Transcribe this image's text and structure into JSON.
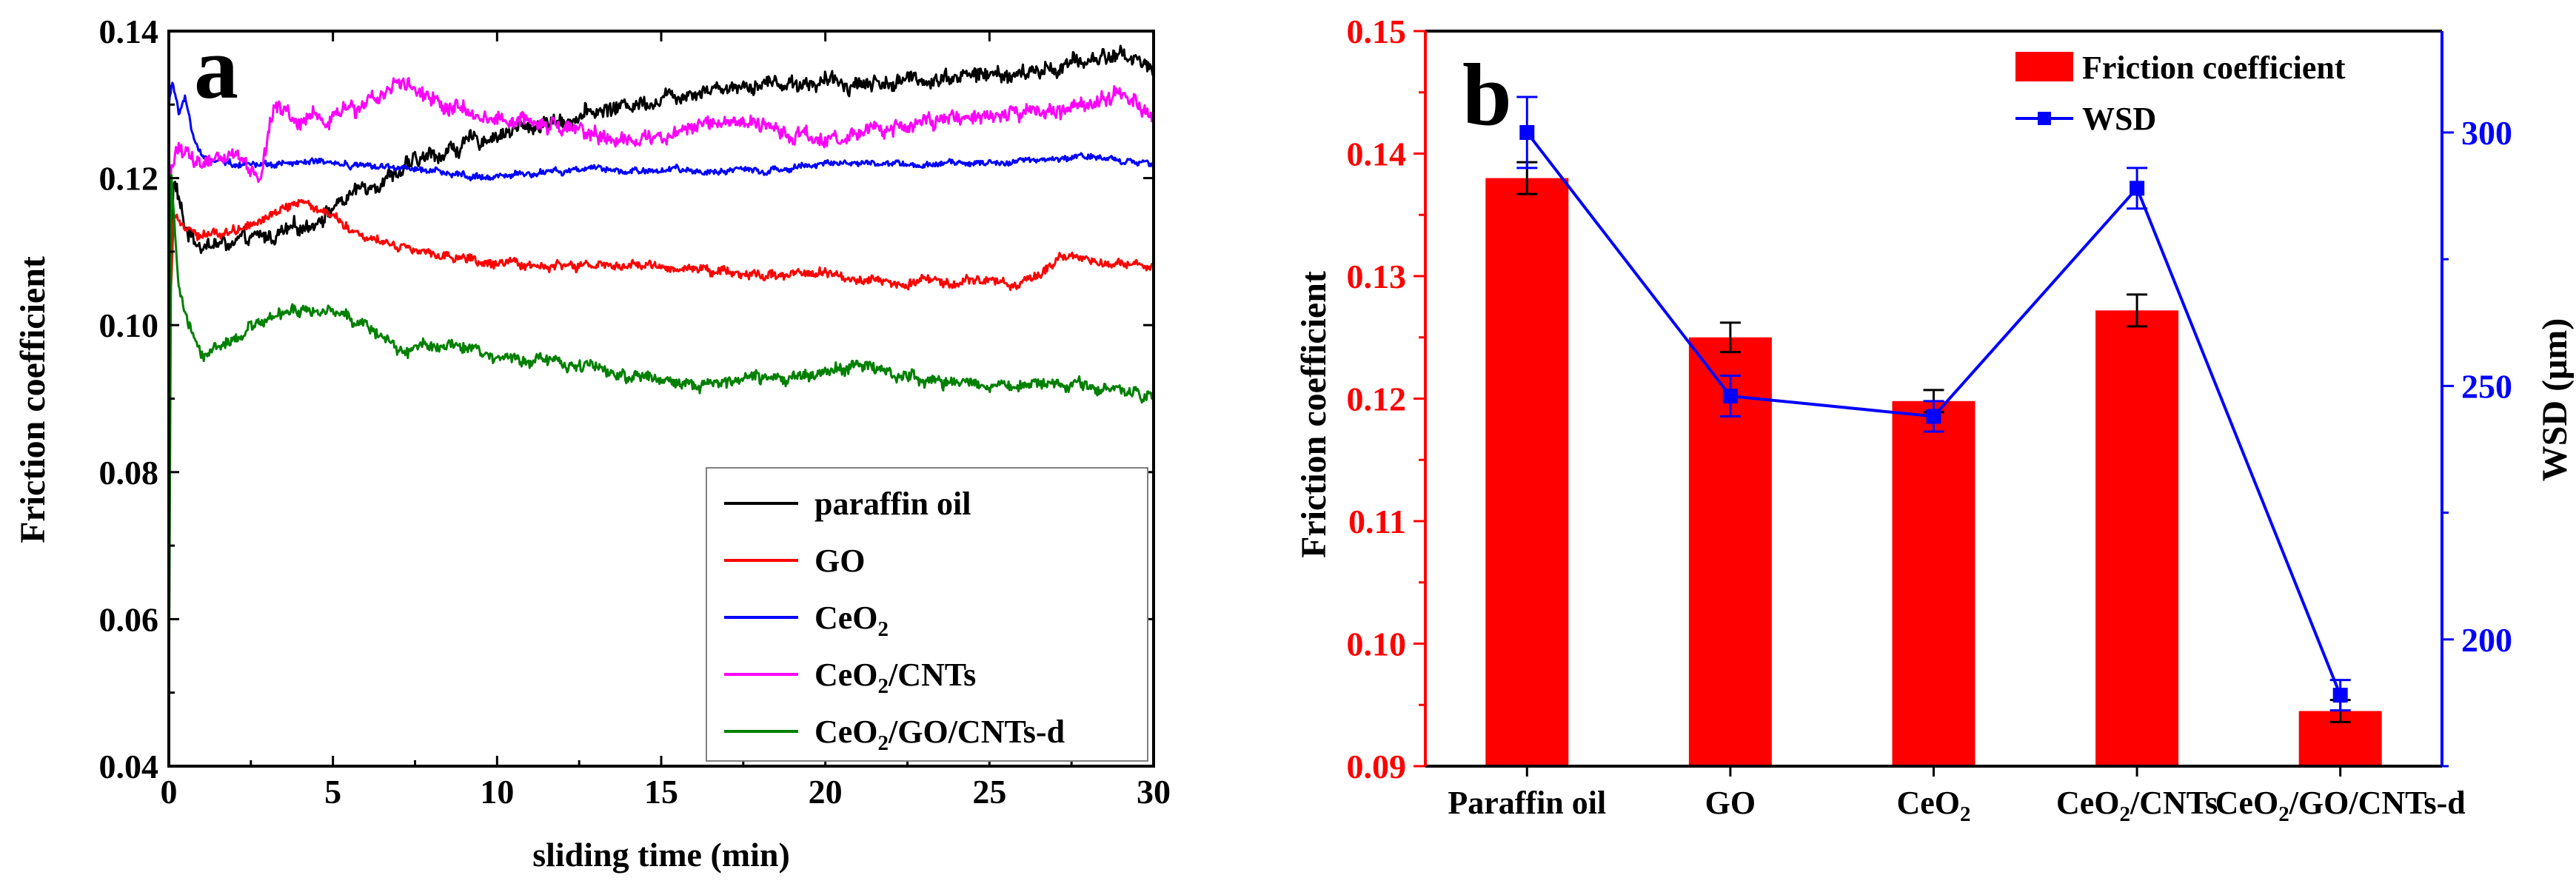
{
  "chart_data": [
    {
      "panel_label": "a",
      "type": "line",
      "xlabel": "sliding time (min)",
      "ylabel": "Friction coefficient",
      "xlim": [
        0,
        30
      ],
      "ylim": [
        0.04,
        0.14
      ],
      "x_ticks": [
        0,
        5,
        10,
        15,
        20,
        25,
        30
      ],
      "x_tick_labels": [
        "0",
        "5",
        "10",
        "15",
        "20",
        "25",
        "30"
      ],
      "y_ticks": [
        0.04,
        0.06,
        0.08,
        0.1,
        0.12,
        0.14
      ],
      "y_tick_labels": [
        "0.04",
        "0.06",
        "0.08",
        "0.10",
        "0.12",
        "0.14"
      ],
      "legend": {
        "position": "bottom-right"
      },
      "series": [
        {
          "name": "paraffin oil",
          "name_main": "paraffin oil",
          "name_sub": "",
          "name_rest": "",
          "color": "#000000",
          "noise": 0.0015,
          "keypoints": [
            [
              0,
              0.095
            ],
            [
              0.15,
              0.12
            ],
            [
              0.5,
              0.113
            ],
            [
              1,
              0.111
            ],
            [
              2,
              0.111
            ],
            [
              3,
              0.112
            ],
            [
              4,
              0.113
            ],
            [
              5,
              0.116
            ],
            [
              6,
              0.119
            ],
            [
              7,
              0.121
            ],
            [
              8,
              0.123
            ],
            [
              10,
              0.126
            ],
            [
              12,
              0.128
            ],
            [
              14,
              0.13
            ],
            [
              16,
              0.132
            ],
            [
              18,
              0.133
            ],
            [
              20,
              0.133
            ],
            [
              22,
              0.133
            ],
            [
              24,
              0.134
            ],
            [
              26,
              0.134
            ],
            [
              28,
              0.136
            ],
            [
              29,
              0.137
            ],
            [
              30,
              0.135
            ]
          ]
        },
        {
          "name": "GO",
          "name_main": "GO",
          "name_sub": "",
          "name_rest": "",
          "color": "#ff0000",
          "noise": 0.0009,
          "keypoints": [
            [
              0,
              0.098
            ],
            [
              0.15,
              0.115
            ],
            [
              0.5,
              0.114
            ],
            [
              1,
              0.112
            ],
            [
              2,
              0.113
            ],
            [
              3,
              0.115
            ],
            [
              4,
              0.117
            ],
            [
              5,
              0.115
            ],
            [
              6,
              0.112
            ],
            [
              7,
              0.111
            ],
            [
              8,
              0.11
            ],
            [
              10,
              0.108
            ],
            [
              12,
              0.108
            ],
            [
              15,
              0.108
            ],
            [
              18,
              0.107
            ],
            [
              20,
              0.107
            ],
            [
              22,
              0.106
            ],
            [
              24,
              0.106
            ],
            [
              25.5,
              0.106
            ],
            [
              26,
              0.105
            ],
            [
              27,
              0.109
            ],
            [
              28,
              0.109
            ],
            [
              30,
              0.108
            ]
          ]
        },
        {
          "name": "CeO2",
          "name_main": "CeO",
          "name_sub": "2",
          "name_rest": "",
          "color": "#0000ff",
          "noise": 0.0006,
          "keypoints": [
            [
              0,
              0.13
            ],
            [
              0.1,
              0.133
            ],
            [
              0.3,
              0.129
            ],
            [
              0.5,
              0.131
            ],
            [
              0.7,
              0.126
            ],
            [
              1,
              0.123
            ],
            [
              2,
              0.122
            ],
            [
              3,
              0.122
            ],
            [
              5,
              0.122
            ],
            [
              8,
              0.121
            ],
            [
              10,
              0.12
            ],
            [
              12,
              0.121
            ],
            [
              15,
              0.121
            ],
            [
              18,
              0.121
            ],
            [
              20,
              0.122
            ],
            [
              22,
              0.122
            ],
            [
              25,
              0.122
            ],
            [
              28,
              0.123
            ],
            [
              30,
              0.122
            ]
          ]
        },
        {
          "name": "CeO2/CNTs",
          "name_main": "CeO",
          "name_sub": "2",
          "name_rest": "/CNTs",
          "color": "#ff00ff",
          "noise": 0.0015,
          "keypoints": [
            [
              0,
              0.044
            ],
            [
              0.05,
              0.12
            ],
            [
              0.2,
              0.124
            ],
            [
              1,
              0.122
            ],
            [
              2,
              0.123
            ],
            [
              2.8,
              0.12
            ],
            [
              3.2,
              0.13
            ],
            [
              4,
              0.128
            ],
            [
              6,
              0.13
            ],
            [
              7,
              0.133
            ],
            [
              8,
              0.13
            ],
            [
              10,
              0.128
            ],
            [
              12,
              0.127
            ],
            [
              14,
              0.125
            ],
            [
              16,
              0.127
            ],
            [
              18,
              0.127
            ],
            [
              20,
              0.125
            ],
            [
              22,
              0.127
            ],
            [
              24,
              0.128
            ],
            [
              26,
              0.129
            ],
            [
              28,
              0.13
            ],
            [
              29,
              0.132
            ],
            [
              30,
              0.128
            ]
          ]
        },
        {
          "name": "CeO2/GO/CNTs-d",
          "name_main": "CeO",
          "name_sub": "2",
          "name_rest": "/GO/CNTs-d",
          "color": "#008000",
          "noise": 0.0012,
          "keypoints": [
            [
              0,
              0.046
            ],
            [
              0.08,
              0.12
            ],
            [
              0.3,
              0.105
            ],
            [
              0.6,
              0.1
            ],
            [
              1,
              0.096
            ],
            [
              2,
              0.098
            ],
            [
              3,
              0.101
            ],
            [
              4,
              0.102
            ],
            [
              5,
              0.101
            ],
            [
              6,
              0.1
            ],
            [
              7,
              0.097
            ],
            [
              9,
              0.097
            ],
            [
              10,
              0.096
            ],
            [
              12,
              0.095
            ],
            [
              14,
              0.093
            ],
            [
              16,
              0.092
            ],
            [
              18,
              0.093
            ],
            [
              20,
              0.093
            ],
            [
              21,
              0.095
            ],
            [
              22,
              0.093
            ],
            [
              24,
              0.092
            ],
            [
              26,
              0.092
            ],
            [
              28,
              0.092
            ],
            [
              30,
              0.09
            ]
          ]
        }
      ]
    },
    {
      "panel_label": "b",
      "type": "bar",
      "categories": [
        "Paraffin oil",
        "GO",
        "CeO2",
        "CeO2/CNTs",
        "CeO2/GO/CNTs-d"
      ],
      "category_labels": [
        {
          "main": "Paraffin oil",
          "sub": "",
          "rest": ""
        },
        {
          "main": "GO",
          "sub": "",
          "rest": ""
        },
        {
          "main": "CeO",
          "sub": "2",
          "rest": ""
        },
        {
          "main": "CeO",
          "sub": "2",
          "rest": "/CNTs"
        },
        {
          "main": "CeO",
          "sub": "2",
          "rest": "/GO/CNTs-d"
        }
      ],
      "ylabel": "Friction coefficient",
      "ylim": [
        0.09,
        0.15
      ],
      "y_ticks": [
        0.09,
        0.1,
        0.11,
        0.12,
        0.13,
        0.14,
        0.15
      ],
      "y_tick_labels": [
        "0.09",
        "0.10",
        "0.11",
        "0.12",
        "0.13",
        "0.14",
        "0.15"
      ],
      "y2label": "WSD (μm)",
      "y2lim": [
        175,
        320
      ],
      "y2_ticks": [
        200,
        250,
        300
      ],
      "y2_tick_labels": [
        "200",
        "250",
        "300"
      ],
      "legend": {
        "position": "top-right"
      },
      "series": [
        {
          "name": "Friction coefficient",
          "type": "bar",
          "axis": "left",
          "color": "#ff0000",
          "values": [
            0.138,
            0.125,
            0.1198,
            0.1272,
            0.0945
          ],
          "errors": [
            0.0013,
            0.0012,
            0.0009,
            0.0013,
            0.0009
          ]
        },
        {
          "name": "WSD",
          "type": "line",
          "axis": "right",
          "color": "#0000ff",
          "marker": "square",
          "values": [
            300,
            248,
            244,
            289,
            189
          ],
          "errors": [
            7,
            4,
            3,
            4,
            3
          ]
        }
      ]
    }
  ]
}
